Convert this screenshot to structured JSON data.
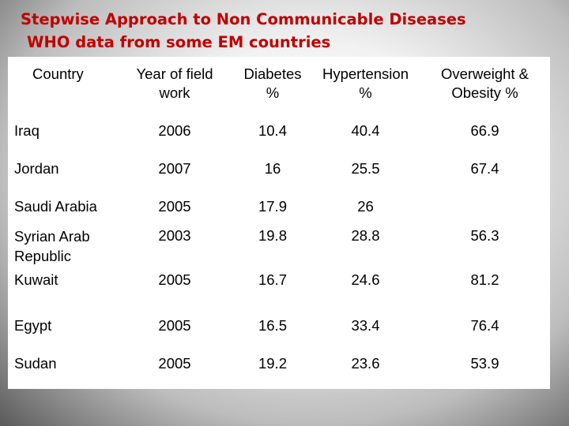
{
  "title": {
    "line1": "Stepwise Approach to Non Communicable Diseases",
    "line2": "WHO data from some EM countries"
  },
  "table": {
    "headers": [
      {
        "line1": "Country",
        "line2": ""
      },
      {
        "line1": "Year of field",
        "line2": "work"
      },
      {
        "line1": "Diabetes",
        "line2": "%"
      },
      {
        "line1": "Hypertension",
        "line2": "%"
      },
      {
        "line1": "Overweight &",
        "line2": "Obesity %"
      }
    ],
    "rows": [
      {
        "country": "Iraq",
        "year": "2006",
        "diabetes": "10.4",
        "hypertension": "40.4",
        "overweight": "66.9"
      },
      {
        "country": "Jordan",
        "year": "2007",
        "diabetes": "16",
        "hypertension": "25.5",
        "overweight": "67.4"
      },
      {
        "country": "Saudi Arabia",
        "year": "2005",
        "diabetes": "17.9",
        "hypertension": "26",
        "overweight": ""
      },
      {
        "country": "Syrian Arab Republic",
        "year": "2003",
        "diabetes": "19.8",
        "hypertension": "28.8",
        "overweight": "56.3"
      },
      {
        "country": "Kuwait",
        "year": "2005",
        "diabetes": "16.7",
        "hypertension": "24.6",
        "overweight": "81.2"
      },
      {
        "country": "Egypt",
        "year": "2005",
        "diabetes": "16.5",
        "hypertension": "33.4",
        "overweight": "76.4"
      },
      {
        "country": "Sudan",
        "year": "2005",
        "diabetes": "19.2",
        "hypertension": "23.6",
        "overweight": "53.9"
      }
    ]
  },
  "colors": {
    "title": "#c00000",
    "panel": "#ffffff",
    "text": "#000000"
  }
}
